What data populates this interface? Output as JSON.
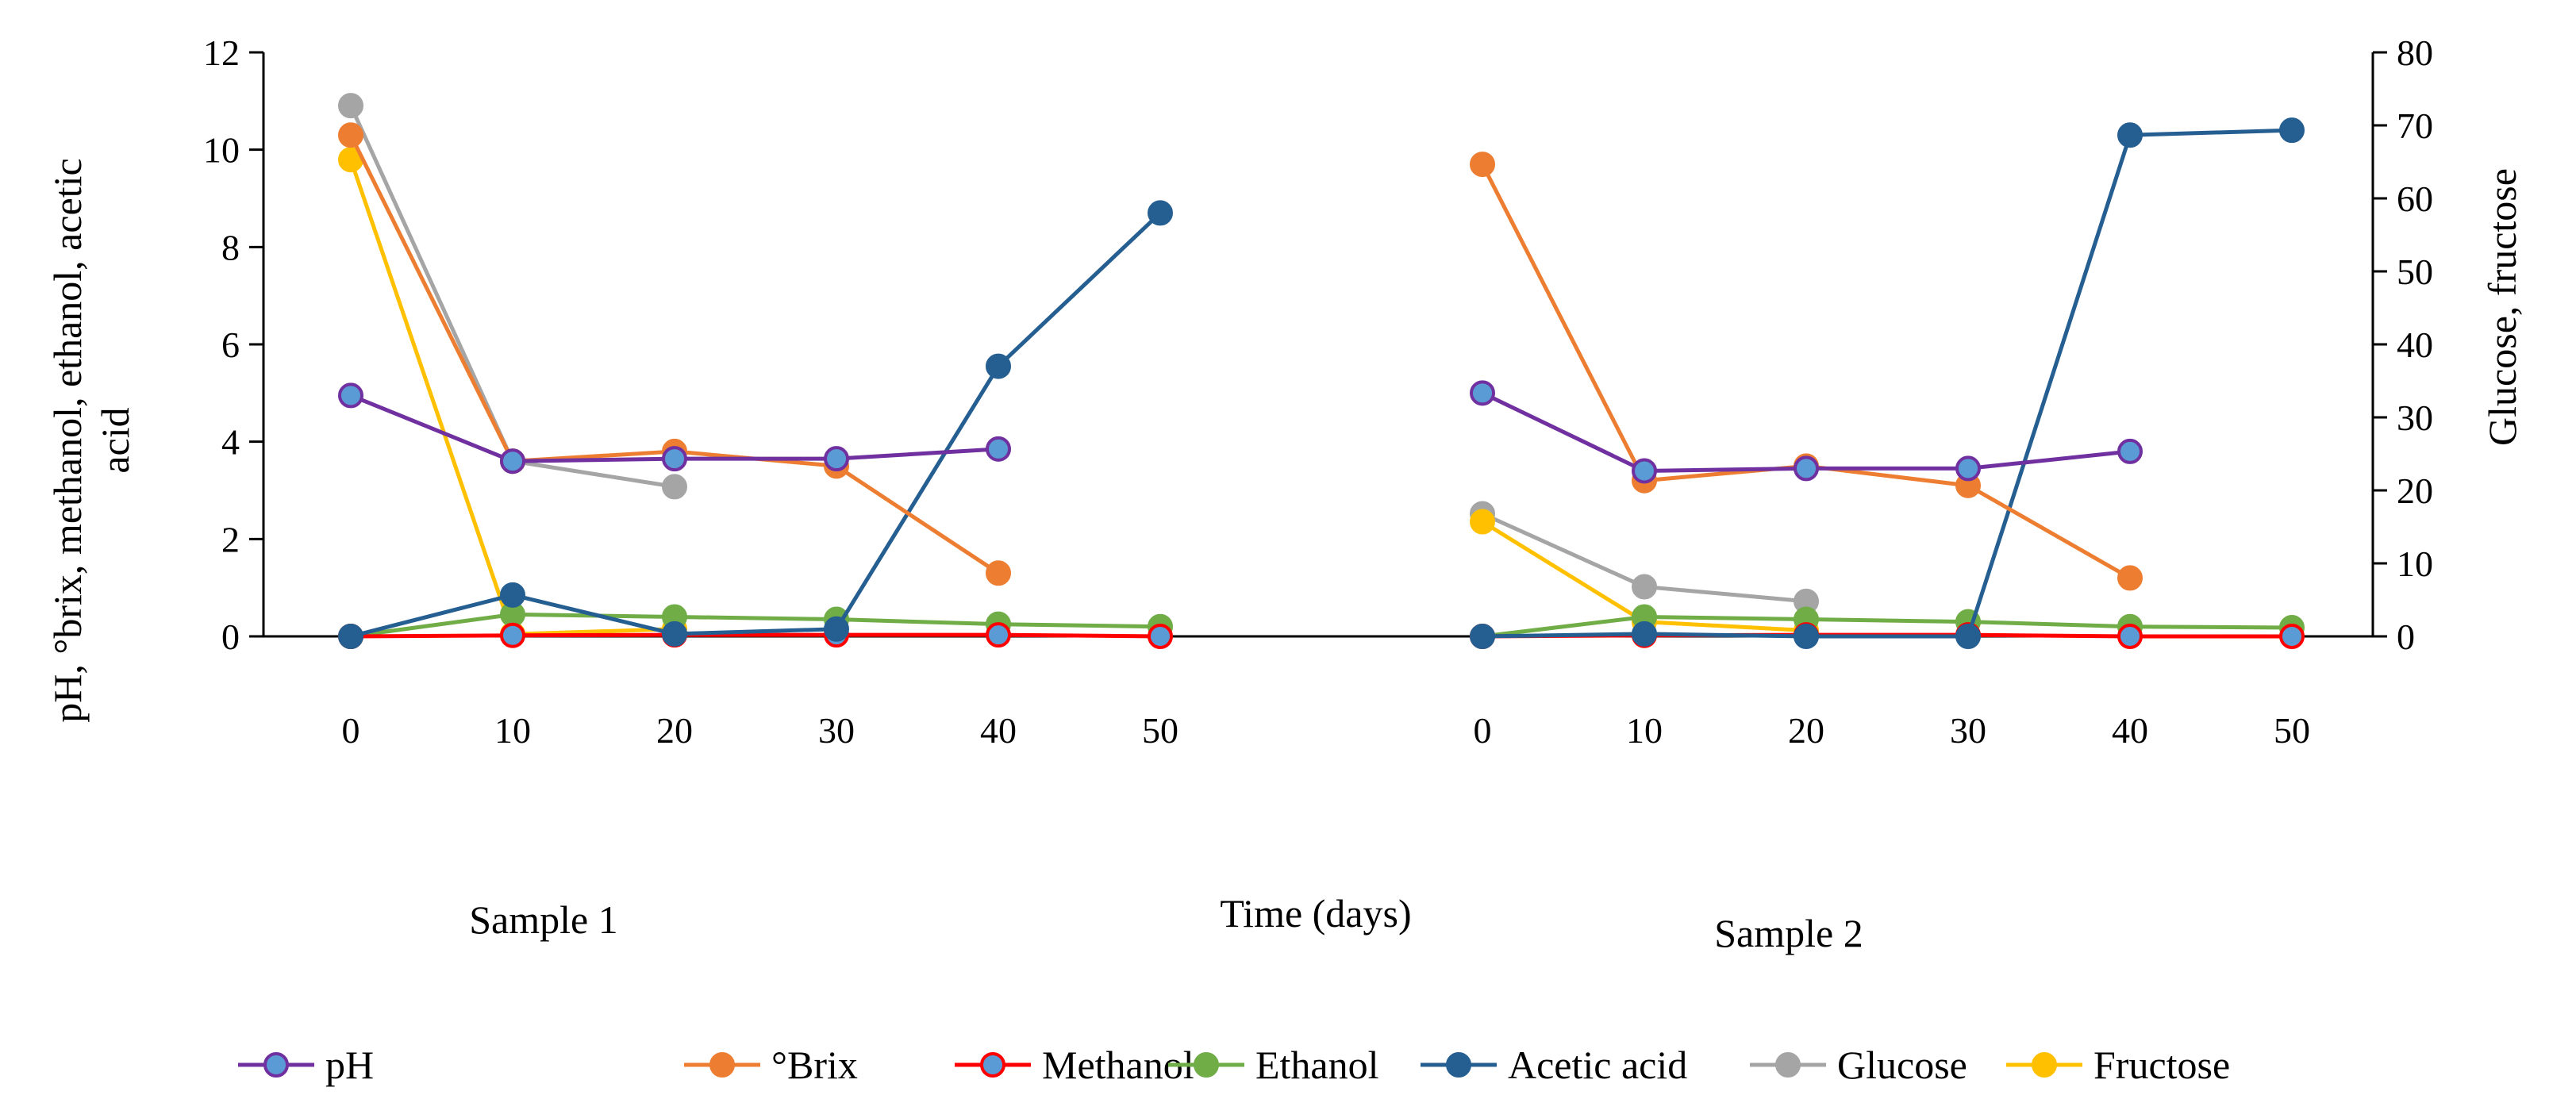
{
  "chart_data": {
    "type": "line",
    "x": [
      0,
      10,
      20,
      30,
      40,
      50
    ],
    "x_tick_labels": [
      "0",
      "10",
      "20",
      "30",
      "40",
      "50"
    ],
    "panels": [
      {
        "label": "Sample 1"
      },
      {
        "label": "Sample 2"
      }
    ],
    "xlabel": "Time (days)",
    "ylabel_left": "pH, °brix, methanol, ethanol, acetic acid",
    "ylabel_right": "Glucose, fructose",
    "ylim_left": [
      0,
      12
    ],
    "yticks_left": [
      "0",
      "2",
      "4",
      "6",
      "8",
      "10",
      "12"
    ],
    "ylim_right": [
      0,
      80
    ],
    "yticks_right": [
      "0",
      "10",
      "20",
      "30",
      "40",
      "50",
      "60",
      "70",
      "80"
    ],
    "grid": false,
    "legend_position": "bottom",
    "series": [
      {
        "name": "pH",
        "axis": "left",
        "color": "#7030A0",
        "marker_fill": "#5B9BD5",
        "values": [
          [
            4.95,
            3.6,
            3.65,
            3.65,
            3.85,
            null
          ],
          [
            5.0,
            3.4,
            3.45,
            3.45,
            3.8,
            null
          ]
        ]
      },
      {
        "name": "°Brix",
        "axis": "left",
        "color": "#ED7D31",
        "marker_fill": "#ED7D31",
        "values": [
          [
            10.3,
            3.6,
            3.8,
            3.5,
            1.3,
            null
          ],
          [
            9.7,
            3.2,
            3.5,
            3.1,
            1.2,
            null
          ]
        ]
      },
      {
        "name": "Methanol",
        "axis": "left",
        "color": "#FF0000",
        "marker_fill": "#5B9BD5",
        "values": [
          [
            0.0,
            0.02,
            0.03,
            0.03,
            0.03,
            0.0
          ],
          [
            0.0,
            0.02,
            0.03,
            0.03,
            0.0,
            0.0
          ]
        ]
      },
      {
        "name": "Ethanol",
        "axis": "left",
        "color": "#70AD47",
        "marker_fill": "#70AD47",
        "values": [
          [
            0.0,
            0.45,
            0.4,
            0.35,
            0.25,
            0.2
          ],
          [
            0.0,
            0.4,
            0.35,
            0.3,
            0.2,
            0.18
          ]
        ]
      },
      {
        "name": "Acetic acid",
        "axis": "left",
        "color": "#255E91",
        "marker_fill": "#255E91",
        "values": [
          [
            0.0,
            0.85,
            0.05,
            0.15,
            5.55,
            8.7
          ],
          [
            0.0,
            0.05,
            0.0,
            0.0,
            10.3,
            10.4
          ]
        ]
      },
      {
        "name": "Glucose",
        "axis": "right",
        "color": "#A5A5A5",
        "marker_fill": "#A5A5A5",
        "values": [
          [
            72.7,
            24.0,
            20.5,
            null,
            null,
            null
          ],
          [
            16.8,
            6.8,
            4.8,
            null,
            null,
            null
          ]
        ]
      },
      {
        "name": "Fructose",
        "axis": "right",
        "color": "#FFC000",
        "marker_fill": "#FFC000",
        "values": [
          [
            65.3,
            0.3,
            1.0,
            null,
            null,
            null
          ],
          [
            15.7,
            2.0,
            0.8,
            null,
            null,
            null
          ]
        ]
      }
    ]
  }
}
